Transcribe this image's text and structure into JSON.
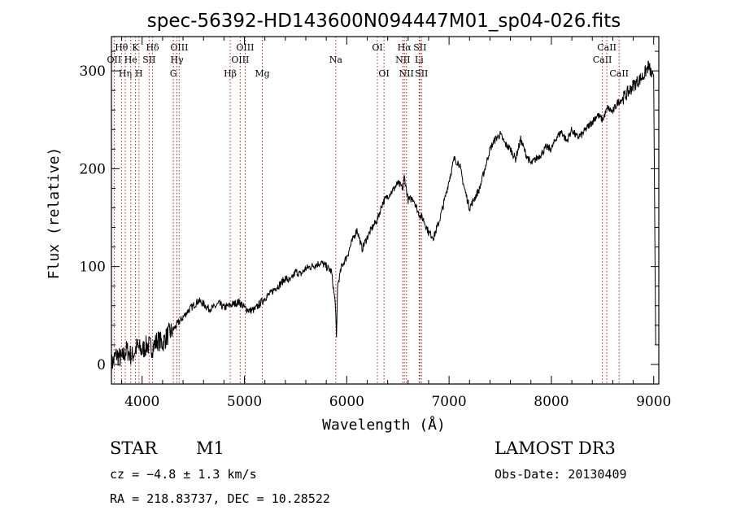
{
  "chart_data": {
    "type": "line",
    "title": "spec-56392-HD143600N094447M01_sp04-026.fits",
    "xlabel": "Wavelength (Å)",
    "ylabel": "Flux (relative)",
    "xlim": [
      3700,
      9050
    ],
    "ylim": [
      -20,
      335
    ],
    "xticks": [
      4000,
      5000,
      6000,
      7000,
      8000,
      9000
    ],
    "yticks": [
      0,
      100,
      200,
      300
    ],
    "yticklabels": [
      "0",
      "100",
      "200",
      "300"
    ],
    "series": [
      {
        "name": "flux",
        "x": [
          3700,
          3750,
          3800,
          3850,
          3900,
          3950,
          4000,
          4050,
          4100,
          4150,
          4200,
          4250,
          4300,
          4350,
          4400,
          4450,
          4500,
          4550,
          4600,
          4650,
          4700,
          4750,
          4800,
          4850,
          4900,
          4950,
          5000,
          5050,
          5100,
          5150,
          5200,
          5250,
          5300,
          5350,
          5400,
          5450,
          5500,
          5550,
          5600,
          5650,
          5700,
          5750,
          5800,
          5850,
          5890,
          5900,
          5910,
          5950,
          6000,
          6050,
          6100,
          6150,
          6200,
          6250,
          6300,
          6350,
          6400,
          6450,
          6500,
          6550,
          6563,
          6600,
          6650,
          6700,
          6750,
          6800,
          6850,
          6900,
          6950,
          7000,
          7050,
          7100,
          7150,
          7200,
          7250,
          7300,
          7350,
          7400,
          7450,
          7500,
          7550,
          7600,
          7650,
          7700,
          7750,
          7800,
          7850,
          7900,
          7950,
          8000,
          8050,
          8100,
          8150,
          8200,
          8250,
          8300,
          8350,
          8400,
          8450,
          8500,
          8550,
          8600,
          8650,
          8700,
          8750,
          8800,
          8850,
          8900,
          8950,
          9000,
          9020
        ],
        "values": [
          0,
          10,
          5,
          15,
          8,
          18,
          14,
          20,
          17,
          25,
          22,
          30,
          35,
          42,
          48,
          55,
          60,
          65,
          62,
          57,
          58,
          62,
          58,
          60,
          62,
          64,
          58,
          55,
          56,
          62,
          68,
          72,
          78,
          82,
          88,
          85,
          95,
          92,
          98,
          100,
          102,
          104,
          100,
          95,
          60,
          25,
          80,
          100,
          110,
          125,
          138,
          118,
          130,
          140,
          148,
          165,
          172,
          178,
          185,
          180,
          192,
          168,
          170,
          155,
          148,
          135,
          130,
          145,
          165,
          188,
          210,
          205,
          180,
          160,
          170,
          180,
          200,
          220,
          230,
          235,
          225,
          220,
          210,
          230,
          215,
          205,
          210,
          215,
          222,
          220,
          232,
          238,
          228,
          240,
          232,
          235,
          242,
          248,
          255,
          250,
          262,
          258,
          268,
          272,
          278,
          285,
          290,
          295,
          305,
          290,
          20
        ]
      }
    ],
    "lines": [
      {
        "name": "Hθ",
        "wl": 3798,
        "row": 1
      },
      {
        "name": "OII",
        "wl": 3727,
        "row": 2
      },
      {
        "name": "Hη",
        "wl": 3835,
        "row": 3
      },
      {
        "name": "He",
        "wl": 3889,
        "row": 2
      },
      {
        "name": "K",
        "wl": 3934,
        "row": 1
      },
      {
        "name": "H",
        "wl": 3969,
        "row": 3
      },
      {
        "name": "SII",
        "wl": 4069,
        "row": 2
      },
      {
        "name": "Hδ",
        "wl": 4102,
        "row": 1
      },
      {
        "name": "Hγ",
        "wl": 4340,
        "row": 2
      },
      {
        "name": "G",
        "wl": 4305,
        "row": 3
      },
      {
        "name": "OIII",
        "wl": 4363,
        "row": 1
      },
      {
        "name": "Hβ",
        "wl": 4861,
        "row": 3
      },
      {
        "name": "OIII",
        "wl": 4959,
        "row": 2
      },
      {
        "name": "OIII",
        "wl": 5007,
        "row": 1
      },
      {
        "name": "Mg",
        "wl": 5175,
        "row": 3
      },
      {
        "name": "Na",
        "wl": 5893,
        "row": 2
      },
      {
        "name": "OI",
        "wl": 6300,
        "row": 1
      },
      {
        "name": "OI",
        "wl": 6364,
        "row": 3
      },
      {
        "name": "NII",
        "wl": 6548,
        "row": 2
      },
      {
        "name": "Hα",
        "wl": 6563,
        "row": 1
      },
      {
        "name": "NII",
        "wl": 6583,
        "row": 3
      },
      {
        "name": "Li",
        "wl": 6708,
        "row": 2
      },
      {
        "name": "SII",
        "wl": 6716,
        "row": 1
      },
      {
        "name": "SII",
        "wl": 6731,
        "row": 3
      },
      {
        "name": "CaII",
        "wl": 8498,
        "row": 2
      },
      {
        "name": "CaII",
        "wl": 8542,
        "row": 1
      },
      {
        "name": "CaII",
        "wl": 8662,
        "row": 3
      }
    ]
  },
  "info": {
    "class": "STAR",
    "subclass": "M1",
    "survey": "LAMOST DR3",
    "cz": "cz = −4.8 ± 1.3 km/s",
    "obsdate": "Obs-Date: 20130409",
    "radec": "RA = 218.83737, DEC =  10.28522"
  },
  "colors": {
    "line_marker": "#b22222",
    "spectrum": "#000000"
  }
}
